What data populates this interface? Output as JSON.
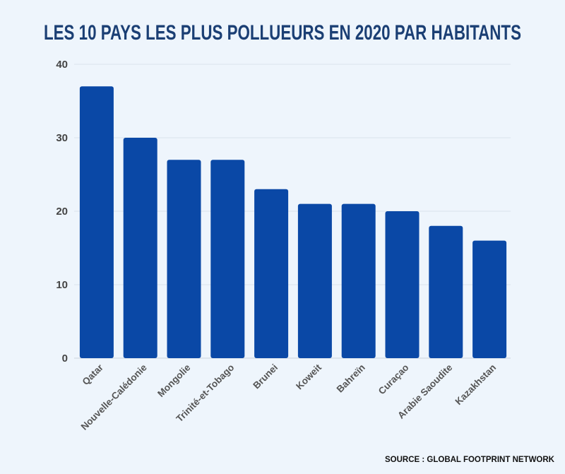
{
  "chart_data": {
    "type": "bar",
    "title": "LES 10 PAYS LES PLUS POLLUEURS EN 2020 PAR HABITANTS",
    "categories": [
      "Qatar",
      "Nouvelle-Calédonie",
      "Mongolie",
      "Trinité-et-Tobago",
      "Brunei",
      "Koweit",
      "Bahreïn",
      "Curaçao",
      "Arabie Saoudite",
      "Kazakhstan"
    ],
    "values": [
      37,
      30,
      27,
      27,
      23,
      21,
      21,
      20,
      18,
      16
    ],
    "ylim": [
      0,
      40
    ],
    "yticks": [
      "0",
      "10",
      "20",
      "30",
      "40"
    ],
    "grid": true,
    "xlabel": "",
    "ylabel": "",
    "bar_color": "#0a48a6",
    "title_color": "#1b3f74",
    "background": "#eef5fc",
    "source": "SOURCE : GLOBAL FOOTPRINT NETWORK"
  }
}
